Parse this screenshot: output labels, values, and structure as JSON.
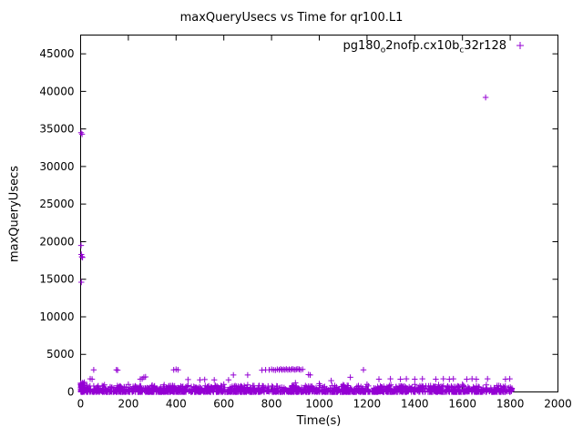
{
  "title": "maxQueryUsecs vs Time for qr100.L1",
  "legend": {
    "part1": "pg180",
    "sub1": "o",
    "part2": "2nofp.cx10b",
    "sub2": "c",
    "part3": "32r128"
  },
  "chart_data": {
    "type": "scatter",
    "title": "maxQueryUsecs vs Time for qr100.L1",
    "xlabel": "Time(s)",
    "ylabel": "maxQueryUsecs",
    "xlim": [
      0,
      2000
    ],
    "ylim": [
      0,
      47500
    ],
    "xticks": [
      0,
      200,
      400,
      600,
      800,
      1000,
      1200,
      1400,
      1600,
      1800,
      2000
    ],
    "yticks": [
      0,
      5000,
      10000,
      15000,
      20000,
      25000,
      30000,
      35000,
      40000,
      45000
    ],
    "grid": false,
    "legend_position": "top-right-inside",
    "marker": "plus",
    "color": "#9400D3",
    "axis_color": "#000000",
    "series": [
      {
        "name": "pg180o2nofp.cx10bc32r128",
        "outliers": [
          [
            2,
            34500
          ],
          [
            6,
            34300
          ],
          [
            2,
            19500
          ],
          [
            3,
            18300
          ],
          [
            5,
            18000
          ],
          [
            8,
            17900
          ],
          [
            3,
            14600
          ],
          [
            1697,
            39200
          ],
          [
            40,
            1750
          ],
          [
            48,
            1700
          ],
          [
            55,
            2950
          ],
          [
            100,
            950
          ],
          [
            150,
            2950
          ],
          [
            155,
            2900
          ],
          [
            200,
            1000
          ],
          [
            250,
            1700
          ],
          [
            258,
            1750
          ],
          [
            265,
            1950
          ],
          [
            272,
            2000
          ],
          [
            300,
            900
          ],
          [
            350,
            950
          ],
          [
            390,
            2950
          ],
          [
            400,
            3000
          ],
          [
            408,
            2950
          ],
          [
            450,
            1650
          ],
          [
            500,
            1600
          ],
          [
            520,
            1650
          ],
          [
            560,
            1600
          ],
          [
            600,
            1000
          ],
          [
            620,
            1600
          ],
          [
            640,
            2250
          ],
          [
            700,
            2250
          ],
          [
            700,
            950
          ],
          [
            760,
            2900
          ],
          [
            775,
            2950
          ],
          [
            790,
            2950
          ],
          [
            800,
            3000
          ],
          [
            808,
            2950
          ],
          [
            816,
            2900
          ],
          [
            824,
            3000
          ],
          [
            832,
            2950
          ],
          [
            838,
            3050
          ],
          [
            844,
            2950
          ],
          [
            850,
            3000
          ],
          [
            856,
            2950
          ],
          [
            862,
            3050
          ],
          [
            868,
            2950
          ],
          [
            874,
            3000
          ],
          [
            880,
            2950
          ],
          [
            886,
            3050
          ],
          [
            892,
            3000
          ],
          [
            898,
            2950
          ],
          [
            904,
            3000
          ],
          [
            910,
            3050
          ],
          [
            916,
            3000
          ],
          [
            922,
            2950
          ],
          [
            930,
            3000
          ],
          [
            900,
            1200
          ],
          [
            955,
            2300
          ],
          [
            962,
            2250
          ],
          [
            1000,
            1100
          ],
          [
            1050,
            1500
          ],
          [
            1100,
            950
          ],
          [
            1130,
            1950
          ],
          [
            1185,
            2950
          ],
          [
            1200,
            1000
          ],
          [
            1250,
            1700
          ],
          [
            1298,
            1750
          ],
          [
            1300,
            950
          ],
          [
            1340,
            1700
          ],
          [
            1365,
            1750
          ],
          [
            1400,
            1700
          ],
          [
            1400,
            1000
          ],
          [
            1432,
            1750
          ],
          [
            1488,
            1700
          ],
          [
            1500,
            950
          ],
          [
            1520,
            1750
          ],
          [
            1545,
            1700
          ],
          [
            1562,
            1750
          ],
          [
            1600,
            1000
          ],
          [
            1618,
            1700
          ],
          [
            1640,
            1750
          ],
          [
            1658,
            1700
          ],
          [
            1700,
            950
          ],
          [
            1705,
            1750
          ],
          [
            1780,
            1700
          ],
          [
            1798,
            1750
          ]
        ],
        "bands": [
          {
            "seed": 1337,
            "count": 1600,
            "x_min": 1,
            "x_max": 1808,
            "y_max": 850,
            "y_pow": 2.5
          },
          {
            "seed": 77,
            "count": 90,
            "x_min": 0,
            "x_max": 16,
            "y_max": 1300,
            "y_pow": 1.5
          }
        ]
      }
    ]
  }
}
